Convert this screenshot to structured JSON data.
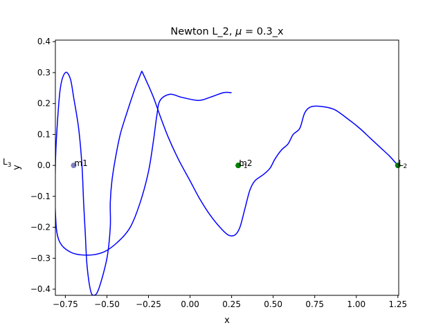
{
  "chart_data": {
    "type": "line",
    "title": "Newton L_2, μ = 0.3_x",
    "title_prefix": "Newton L_2, ",
    "title_mu": "μ",
    "title_suffix": " = 0.3_x",
    "xlabel": "x",
    "ylabel": "y",
    "xlim": [
      -0.81,
      1.255
    ],
    "ylim": [
      -0.42,
      0.405
    ],
    "xticks": [
      -0.75,
      -0.5,
      -0.25,
      0.0,
      0.25,
      0.5,
      0.75,
      1.0,
      1.25
    ],
    "xtick_labels": [
      "−0.75",
      "−0.50",
      "−0.25",
      "0.00",
      "0.25",
      "0.50",
      "0.75",
      "1.00",
      "1.25"
    ],
    "yticks": [
      -0.4,
      -0.3,
      -0.2,
      -0.1,
      0.0,
      0.1,
      0.2,
      0.3,
      0.4
    ],
    "ytick_labels": [
      "−0.4",
      "−0.3",
      "−0.2",
      "−0.1",
      "0.0",
      "0.1",
      "0.2",
      "0.3",
      "0.4"
    ],
    "grid": false,
    "line_color": "#0000ff",
    "trajectory": [
      [
        -0.29,
        0.305
      ],
      [
        -0.26,
        0.27
      ],
      [
        -0.22,
        0.22
      ],
      [
        -0.18,
        0.16
      ],
      [
        -0.13,
        0.09
      ],
      [
        -0.07,
        0.02
      ],
      [
        0.0,
        -0.05
      ],
      [
        0.06,
        -0.11
      ],
      [
        0.12,
        -0.16
      ],
      [
        0.18,
        -0.2
      ],
      [
        0.23,
        -0.225
      ],
      [
        0.27,
        -0.225
      ],
      [
        0.3,
        -0.2
      ],
      [
        0.33,
        -0.14
      ],
      [
        0.36,
        -0.08
      ],
      [
        0.39,
        -0.05
      ],
      [
        0.44,
        -0.03
      ],
      [
        0.48,
        -0.01
      ],
      [
        0.51,
        0.02
      ],
      [
        0.55,
        0.05
      ],
      [
        0.59,
        0.07
      ],
      [
        0.62,
        0.1
      ],
      [
        0.66,
        0.12
      ],
      [
        0.69,
        0.17
      ],
      [
        0.73,
        0.19
      ],
      [
        0.8,
        0.19
      ],
      [
        0.87,
        0.18
      ],
      [
        0.95,
        0.15
      ],
      [
        1.02,
        0.12
      ],
      [
        1.08,
        0.09
      ],
      [
        1.14,
        0.06
      ],
      [
        1.2,
        0.03
      ],
      [
        1.25,
        0.0
      ]
    ],
    "trajectory_extra": [
      [
        -0.29,
        0.305
      ],
      [
        -0.33,
        0.25
      ],
      [
        -0.38,
        0.17
      ],
      [
        -0.42,
        0.1
      ],
      [
        -0.45,
        0.02
      ],
      [
        -0.47,
        -0.05
      ],
      [
        -0.48,
        -0.12
      ],
      [
        -0.48,
        -0.2
      ],
      [
        -0.5,
        -0.3
      ],
      [
        -0.55,
        -0.4
      ],
      [
        -0.58,
        -0.42
      ],
      [
        -0.6,
        -0.4
      ],
      [
        -0.62,
        -0.32
      ],
      [
        -0.63,
        -0.22
      ],
      [
        -0.64,
        -0.12
      ],
      [
        -0.65,
        0.0
      ],
      [
        -0.67,
        0.12
      ],
      [
        -0.7,
        0.22
      ],
      [
        -0.72,
        0.28
      ],
      [
        -0.75,
        0.3
      ],
      [
        -0.78,
        0.25
      ],
      [
        -0.8,
        0.12
      ],
      [
        -0.81,
        0.0
      ],
      [
        -0.81,
        -0.15
      ],
      [
        -0.79,
        -0.24
      ],
      [
        -0.72,
        -0.28
      ],
      [
        -0.62,
        -0.29
      ],
      [
        -0.52,
        -0.28
      ],
      [
        -0.44,
        -0.25
      ],
      [
        -0.36,
        -0.2
      ],
      [
        -0.3,
        -0.12
      ],
      [
        -0.25,
        -0.02
      ],
      [
        -0.22,
        0.08
      ],
      [
        -0.2,
        0.16
      ],
      [
        -0.18,
        0.21
      ],
      [
        -0.12,
        0.23
      ],
      [
        -0.05,
        0.22
      ],
      [
        0.05,
        0.21
      ],
      [
        0.12,
        0.22
      ],
      [
        0.2,
        0.235
      ],
      [
        0.25,
        0.235
      ]
    ],
    "markers": [
      {
        "label": "m1",
        "x": -0.7,
        "y": 0.0,
        "color": "#7f7fbf"
      },
      {
        "label": "m2",
        "x": 0.29,
        "y": 0.0,
        "color": "#008000"
      },
      {
        "label": "L_1",
        "x": 0.29,
        "y": 0.0,
        "color": "#008000"
      },
      {
        "label": "L_2",
        "x": 1.25,
        "y": 0.0,
        "color": "#008000"
      }
    ],
    "point_labels": [
      {
        "id": "m1",
        "text": "m1",
        "x": -0.7,
        "y": 0.0
      },
      {
        "id": "m2",
        "text": "m2",
        "x": 0.29,
        "y": 0.0
      },
      {
        "id": "L1",
        "text": "L",
        "sub": "1",
        "x": 0.29,
        "y": 0.0
      },
      {
        "id": "L2",
        "text": "L",
        "sub": "2",
        "x": 1.25,
        "y": 0.0
      },
      {
        "id": "L3",
        "text": "L",
        "sub": "3",
        "x": -0.81,
        "y": 0.0
      }
    ]
  }
}
